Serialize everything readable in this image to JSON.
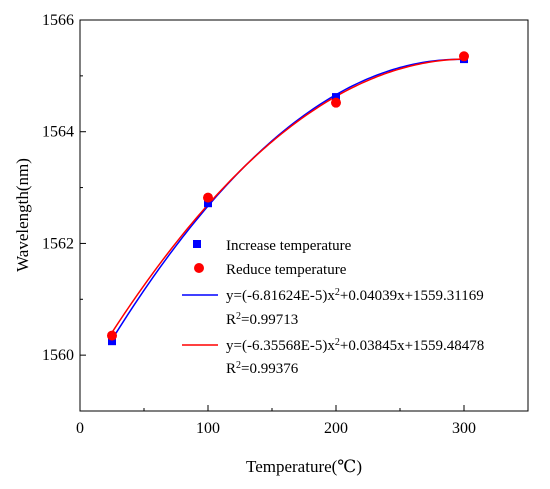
{
  "chart_data": {
    "type": "scatter",
    "xlabel": "Temperature(℃)",
    "ylabel": "Wavelength(nm)",
    "xlim": [
      0,
      350
    ],
    "ylim": [
      1559,
      1566
    ],
    "xticks": [
      0,
      100,
      200,
      300
    ],
    "yticks": [
      1560,
      1562,
      1564,
      1566
    ],
    "grid": false,
    "legend_position": "center-right",
    "series": [
      {
        "name": "Increase temperature",
        "marker": "square",
        "color": "#0000ff",
        "x": [
          25,
          100,
          200,
          300
        ],
        "y": [
          1560.25,
          1562.72,
          1564.62,
          1565.3
        ]
      },
      {
        "name": "Reduce temperature",
        "marker": "circle",
        "color": "#ff0000",
        "x": [
          25,
          100,
          200,
          300
        ],
        "y": [
          1560.35,
          1562.82,
          1564.52,
          1565.35
        ]
      }
    ],
    "fits": [
      {
        "color": "#0000ff",
        "a": -6.81624e-05,
        "b": 0.04039,
        "c": 1559.31169,
        "x_range": [
          25,
          300
        ],
        "equation_text": "y=(-6.81624E-5)x²+0.04039x+1559.31169",
        "r2_text": "R²=0.99713"
      },
      {
        "color": "#ff0000",
        "a": -6.35568e-05,
        "b": 0.03845,
        "c": 1559.48478,
        "x_range": [
          25,
          300
        ],
        "equation_text": "y=(-6.35568E-5)x²+0.03845x+1559.48478",
        "r2_text": "R²=0.99376"
      }
    ]
  }
}
